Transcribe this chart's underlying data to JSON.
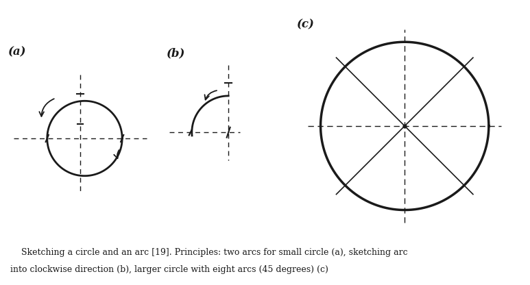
{
  "bg_color": "#ffffff",
  "label_a": "(a)",
  "label_b": "(b)",
  "label_c": "(c)",
  "caption_line1": "    Sketching a circle and an arc [19]. Principles: two arcs for small circle (a), sketching arc",
  "caption_line2": "into clockwise direction (b), larger circle with eight arcs (45 degrees) (c)",
  "caption_fontsize": 9.0,
  "label_fontsize": 12,
  "line_color": "#1a1a1a",
  "line_lw": 1.2,
  "circle_lw": 2.0,
  "dashed_lw": 1.0
}
